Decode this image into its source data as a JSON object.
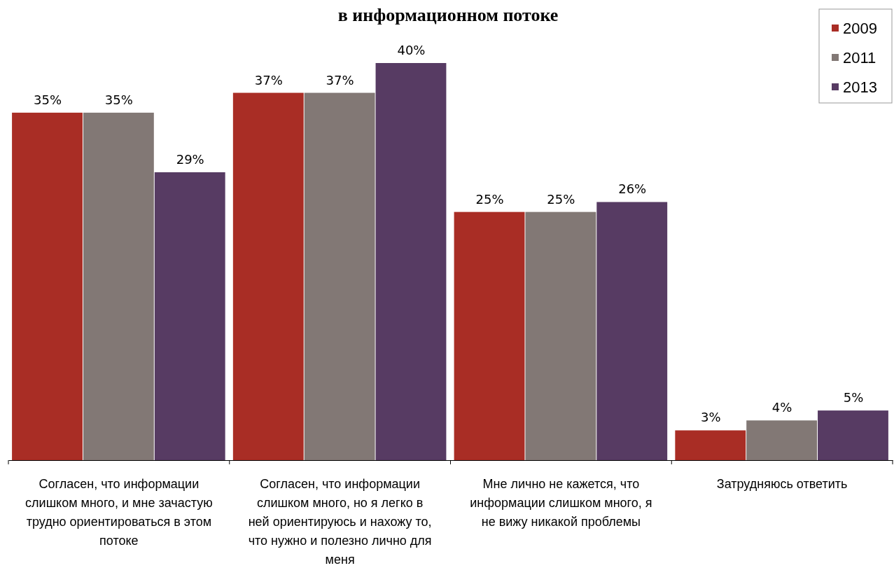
{
  "chart_data": {
    "type": "bar",
    "title": "в информационном потоке",
    "categories": [
      "Согласен, что информации слишком много, и мне зачастую трудно ориентироваться в этом потоке",
      "Согласен, что информации слишком много, но я легко в ней ориентируюсь и нахожу то, что нужно и полезно лично для меня",
      "Мне лично не кажется, что информации слишком много, я не вижу никакой проблемы",
      "Затрудняюсь ответить"
    ],
    "series": [
      {
        "name": "2009",
        "color": "#a92d25",
        "values": [
          35,
          37,
          25,
          3
        ],
        "value_labels": [
          "35%",
          "37%",
          "25%",
          "3%"
        ]
      },
      {
        "name": "2011",
        "color": "#827875",
        "values": [
          35,
          37,
          25,
          4
        ],
        "value_labels": [
          "35%",
          "37%",
          "25%",
          "4%"
        ]
      },
      {
        "name": "2013",
        "color": "#573b63",
        "values": [
          29,
          40,
          26,
          5
        ],
        "value_labels": [
          "29%",
          "40%",
          "26%",
          "5%"
        ]
      }
    ],
    "legend": "top right",
    "tick_labels": "x"
  }
}
